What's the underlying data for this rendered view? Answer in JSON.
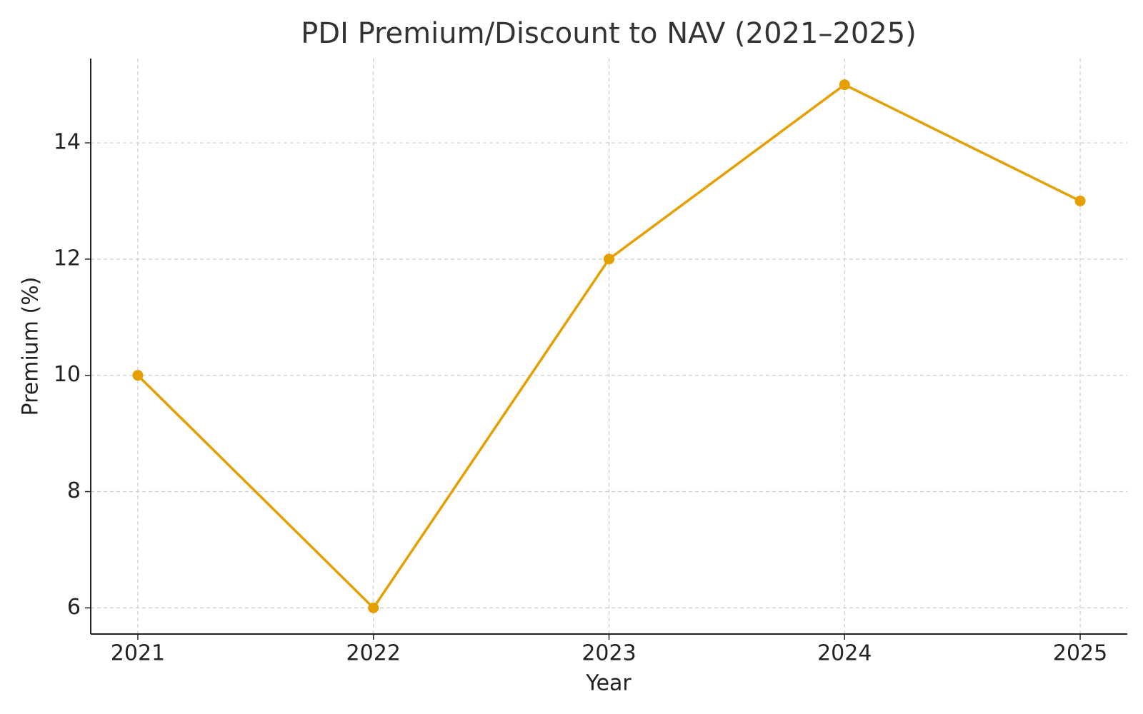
{
  "chart_data": {
    "type": "line",
    "title": "PDI Premium/Discount to NAV (2021–2025)",
    "x_label": "Year",
    "y_label": "Premium (%)",
    "x": [
      2021,
      2022,
      2023,
      2024,
      2025
    ],
    "series": [
      {
        "name": "PDI",
        "color": "#e69f00",
        "values": [
          10,
          6,
          12,
          15,
          13
        ]
      }
    ],
    "xlim": [
      2020.8,
      2025.2
    ],
    "xticks": [
      2021,
      2022,
      2023,
      2024,
      2025
    ],
    "ylim": [
      5.55,
      15.45
    ],
    "yticks": [
      6,
      8,
      10,
      12,
      14
    ],
    "grid": true
  }
}
